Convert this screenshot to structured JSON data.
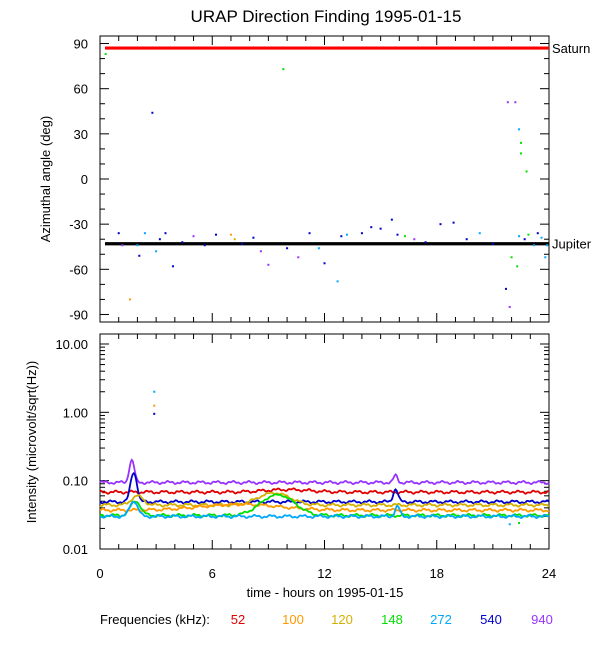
{
  "chart_data": {
    "type": "scatter",
    "title": "URAP Direction Finding  1995-01-15",
    "xlabel": "time - hours on 1995-01-15",
    "x_ticks": [
      0,
      6,
      12,
      18,
      24
    ],
    "xlim": [
      0,
      24
    ],
    "legend_title": "Frequencies (kHz):",
    "frequencies": [
      {
        "label": "52",
        "color": "#e00000"
      },
      {
        "label": "100",
        "color": "#ff9900"
      },
      {
        "label": "120",
        "color": "#d4b000"
      },
      {
        "label": "148",
        "color": "#00e000"
      },
      {
        "label": "272",
        "color": "#00a8ff"
      },
      {
        "label": "540",
        "color": "#0000cc"
      },
      {
        "label": "940",
        "color": "#9933ff"
      }
    ],
    "panels": [
      {
        "name": "azimuth",
        "ylabel": "Azimuthal angle (deg)",
        "ylim": [
          -95,
          95
        ],
        "y_ticks": [
          90,
          60,
          30,
          0,
          -30,
          -60,
          -90
        ],
        "y_tick_labels": [
          "90",
          "60",
          "30",
          "0",
          "-30",
          "-60",
          "-90"
        ],
        "reference_lines": [
          {
            "label": "Saturn",
            "value": 87,
            "color": "#ff0000"
          },
          {
            "label": "Jupiter",
            "value": -43,
            "color": "#000000"
          }
        ],
        "points": [
          {
            "t": 0.3,
            "v": 83,
            "f": "148"
          },
          {
            "t": 1.0,
            "v": -36,
            "f": "540"
          },
          {
            "t": 1.2,
            "v": -44,
            "f": "940"
          },
          {
            "t": 1.6,
            "v": -80,
            "f": "100"
          },
          {
            "t": 2.0,
            "v": -44,
            "f": "272"
          },
          {
            "t": 2.1,
            "v": -51,
            "f": "540"
          },
          {
            "t": 2.4,
            "v": -36,
            "f": "272"
          },
          {
            "t": 2.8,
            "v": 44,
            "f": "540"
          },
          {
            "t": 3.0,
            "v": -48,
            "f": "272"
          },
          {
            "t": 3.2,
            "v": -40,
            "f": "540"
          },
          {
            "t": 3.5,
            "v": -36,
            "f": "540"
          },
          {
            "t": 3.9,
            "v": -58,
            "f": "540"
          },
          {
            "t": 4.4,
            "v": -42,
            "f": "540"
          },
          {
            "t": 5.0,
            "v": -38,
            "f": "940"
          },
          {
            "t": 5.6,
            "v": -44,
            "f": "540"
          },
          {
            "t": 6.2,
            "v": -37,
            "f": "540"
          },
          {
            "t": 7.0,
            "v": -37,
            "f": "100"
          },
          {
            "t": 7.2,
            "v": -40,
            "f": "120"
          },
          {
            "t": 7.6,
            "v": -43,
            "f": "540"
          },
          {
            "t": 8.2,
            "v": -39,
            "f": "540"
          },
          {
            "t": 8.6,
            "v": -48,
            "f": "940"
          },
          {
            "t": 9.0,
            "v": -57,
            "f": "940"
          },
          {
            "t": 9.8,
            "v": 73,
            "f": "148"
          },
          {
            "t": 10.0,
            "v": -46,
            "f": "540"
          },
          {
            "t": 10.6,
            "v": -52,
            "f": "940"
          },
          {
            "t": 11.2,
            "v": -36,
            "f": "540"
          },
          {
            "t": 11.7,
            "v": -46,
            "f": "272"
          },
          {
            "t": 12.0,
            "v": -56,
            "f": "540"
          },
          {
            "t": 12.7,
            "v": -68,
            "f": "272"
          },
          {
            "t": 12.9,
            "v": -38,
            "f": "540"
          },
          {
            "t": 13.2,
            "v": -37,
            "f": "272"
          },
          {
            "t": 14.0,
            "v": -36,
            "f": "540"
          },
          {
            "t": 14.5,
            "v": -32,
            "f": "540"
          },
          {
            "t": 15.0,
            "v": -33,
            "f": "540"
          },
          {
            "t": 15.6,
            "v": -27,
            "f": "540"
          },
          {
            "t": 15.9,
            "v": -37,
            "f": "540"
          },
          {
            "t": 16.3,
            "v": -38,
            "f": "148"
          },
          {
            "t": 16.8,
            "v": -40,
            "f": "940"
          },
          {
            "t": 17.4,
            "v": -42,
            "f": "540"
          },
          {
            "t": 18.2,
            "v": -30,
            "f": "540"
          },
          {
            "t": 18.9,
            "v": -29,
            "f": "540"
          },
          {
            "t": 19.6,
            "v": -40,
            "f": "540"
          },
          {
            "t": 20.3,
            "v": -36,
            "f": "272"
          },
          {
            "t": 21.0,
            "v": -43,
            "f": "540"
          },
          {
            "t": 21.8,
            "v": 51,
            "f": "940"
          },
          {
            "t": 21.9,
            "v": -85,
            "f": "940"
          },
          {
            "t": 22.2,
            "v": 51,
            "f": "940"
          },
          {
            "t": 22.4,
            "v": 33,
            "f": "272"
          },
          {
            "t": 22.5,
            "v": 24,
            "f": "148"
          },
          {
            "t": 22.5,
            "v": 17,
            "f": "148"
          },
          {
            "t": 22.8,
            "v": 5,
            "f": "148"
          },
          {
            "t": 22.4,
            "v": -38,
            "f": "272"
          },
          {
            "t": 22.7,
            "v": -40,
            "f": "540"
          },
          {
            "t": 22.9,
            "v": -37,
            "f": "148"
          },
          {
            "t": 23.2,
            "v": -44,
            "f": "272"
          },
          {
            "t": 23.4,
            "v": -36,
            "f": "540"
          },
          {
            "t": 23.6,
            "v": -39,
            "f": "272"
          },
          {
            "t": 23.9,
            "v": -44,
            "f": "272"
          },
          {
            "t": 22.0,
            "v": -52,
            "f": "148"
          },
          {
            "t": 22.3,
            "v": -58,
            "f": "148"
          },
          {
            "t": 23.8,
            "v": -52,
            "f": "272"
          },
          {
            "t": 21.7,
            "v": -73,
            "f": "540"
          }
        ]
      },
      {
        "name": "intensity",
        "ylabel": "Intensity (microvolt/sqrt(Hz))",
        "scale": "log",
        "ylim": [
          0.01,
          14
        ],
        "y_ticks": [
          10,
          1,
          0.1,
          0.01
        ],
        "y_tick_labels": [
          "10.00",
          "1.00",
          "0.10",
          "0.01"
        ],
        "series": [
          {
            "f": "940",
            "base": 0.094,
            "spikes": [
              {
                "t": 1.7,
                "peak": 0.2,
                "w": 0.12
              },
              {
                "t": 15.8,
                "peak": 0.12,
                "w": 0.1
              }
            ]
          },
          {
            "f": "52",
            "base": 0.068,
            "spikes": [
              {
                "t": 10.0,
                "peak": 0.074,
                "w": 1.2
              }
            ]
          },
          {
            "f": "540",
            "base": 0.049,
            "spikes": [
              {
                "t": 1.8,
                "peak": 0.13,
                "w": 0.15
              },
              {
                "t": 15.8,
                "peak": 0.075,
                "w": 0.12
              }
            ]
          },
          {
            "f": "120",
            "base": 0.044,
            "spikes": [
              {
                "t": 9.3,
                "peak": 0.066,
                "w": 0.8
              },
              {
                "t": 2.0,
                "peak": 0.06,
                "w": 0.3
              }
            ]
          },
          {
            "f": "100",
            "base": 0.037,
            "spikes": [
              {
                "t": 7.5,
                "peak": 0.045,
                "w": 2.0
              }
            ]
          },
          {
            "f": "148",
            "base": 0.031,
            "spikes": [
              {
                "t": 9.5,
                "peak": 0.062,
                "w": 0.8
              },
              {
                "t": 1.9,
                "peak": 0.05,
                "w": 0.25
              }
            ]
          },
          {
            "f": "272",
            "base": 0.03,
            "spikes": [
              {
                "t": 1.8,
                "peak": 0.05,
                "w": 0.2
              },
              {
                "t": 15.9,
                "peak": 0.042,
                "w": 0.12
              }
            ]
          }
        ],
        "isolated_points": [
          {
            "t": 2.9,
            "v": 2.0,
            "f": "272"
          },
          {
            "t": 2.9,
            "v": 1.25,
            "f": "100"
          },
          {
            "t": 2.9,
            "v": 0.95,
            "f": "540"
          },
          {
            "t": 21.9,
            "v": 0.023,
            "f": "272"
          },
          {
            "t": 22.4,
            "v": 0.024,
            "f": "148"
          }
        ]
      }
    ]
  }
}
